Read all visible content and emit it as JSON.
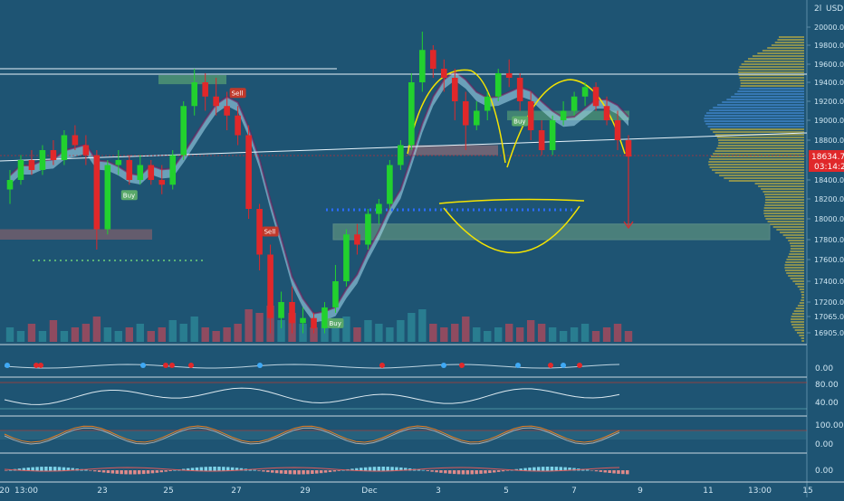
{
  "header": {
    "currency_label": "USD",
    "currency_prefix": "2l"
  },
  "price_scale": {
    "ticks": [
      "20000.00",
      "19800.00",
      "19600.00",
      "19400.00",
      "19200.00",
      "19000.00",
      "18800.00",
      "18400.00",
      "18200.00",
      "18000.00",
      "17800.00",
      "17600.00",
      "17400.00",
      "17200.00",
      "17065.00",
      "16905.00"
    ],
    "current_price": "18634.72",
    "countdown": "03:14:22"
  },
  "time_axis": {
    "labels": [
      "20",
      "13:00",
      "23",
      "25",
      "27",
      "29",
      "Dec",
      "3",
      "5",
      "7",
      "9",
      "11",
      "13:00",
      "15"
    ]
  },
  "indicator_scales": {
    "pane1": [
      "0.00"
    ],
    "pane2": [
      "80.00",
      "40.00"
    ],
    "pane3": [
      "100.00",
      "0.00"
    ],
    "pane4": [
      "0.00"
    ]
  },
  "signals": {
    "buy_label": "Buy",
    "sell_label": "Sell"
  },
  "colors": {
    "background": "#1e5473",
    "bull": "#22d12e",
    "bear": "#e0282a",
    "neutral": "#d9d9d9",
    "ribbon_up": "#a9dff2",
    "ribbon_down": "#7a1a5a",
    "pattern": "#f5e400",
    "price_tag": "#e0282a"
  },
  "chart_data": {
    "type": "candlestick",
    "symbol_currency": "USD",
    "y_range": [
      16850,
      20100
    ],
    "y_ticks": [
      20000,
      19800,
      19600,
      19400,
      19200,
      19000,
      18800,
      18400,
      18200,
      18000,
      17800,
      17600,
      17400,
      17200,
      17065,
      16905
    ],
    "last_price": 18634.72,
    "candles": [
      {
        "o": 18300,
        "h": 18500,
        "l": 18150,
        "c": 18400
      },
      {
        "o": 18400,
        "h": 18650,
        "l": 18350,
        "c": 18600
      },
      {
        "o": 18600,
        "h": 18700,
        "l": 18450,
        "c": 18500
      },
      {
        "o": 18500,
        "h": 18750,
        "l": 18450,
        "c": 18700
      },
      {
        "o": 18700,
        "h": 18800,
        "l": 18550,
        "c": 18600
      },
      {
        "o": 18600,
        "h": 18900,
        "l": 18550,
        "c": 18850
      },
      {
        "o": 18850,
        "h": 18950,
        "l": 18700,
        "c": 18750
      },
      {
        "o": 18750,
        "h": 18850,
        "l": 18550,
        "c": 18650
      },
      {
        "o": 18650,
        "h": 18700,
        "l": 17700,
        "c": 17900
      },
      {
        "o": 17900,
        "h": 18600,
        "l": 17850,
        "c": 18550
      },
      {
        "o": 18550,
        "h": 18700,
        "l": 18450,
        "c": 18600
      },
      {
        "o": 18600,
        "h": 18650,
        "l": 18350,
        "c": 18400
      },
      {
        "o": 18400,
        "h": 18650,
        "l": 18350,
        "c": 18550
      },
      {
        "o": 18550,
        "h": 18600,
        "l": 18350,
        "c": 18400
      },
      {
        "o": 18400,
        "h": 18550,
        "l": 18250,
        "c": 18350
      },
      {
        "o": 18350,
        "h": 18700,
        "l": 18300,
        "c": 18650
      },
      {
        "o": 18650,
        "h": 19200,
        "l": 18600,
        "c": 19150
      },
      {
        "o": 19150,
        "h": 19550,
        "l": 19050,
        "c": 19400
      },
      {
        "o": 19400,
        "h": 19500,
        "l": 19100,
        "c": 19250
      },
      {
        "o": 19250,
        "h": 19450,
        "l": 19050,
        "c": 19150
      },
      {
        "o": 19150,
        "h": 19300,
        "l": 18900,
        "c": 19050
      },
      {
        "o": 19050,
        "h": 19150,
        "l": 18750,
        "c": 18850
      },
      {
        "o": 18850,
        "h": 18950,
        "l": 18000,
        "c": 18100
      },
      {
        "o": 18100,
        "h": 18150,
        "l": 17500,
        "c": 17650
      },
      {
        "o": 17650,
        "h": 17750,
        "l": 16900,
        "c": 17050
      },
      {
        "o": 17050,
        "h": 17300,
        "l": 16950,
        "c": 17200
      },
      {
        "o": 17200,
        "h": 17350,
        "l": 16900,
        "c": 17000
      },
      {
        "o": 17000,
        "h": 17150,
        "l": 16900,
        "c": 17050
      },
      {
        "o": 17050,
        "h": 17100,
        "l": 16900,
        "c": 16950
      },
      {
        "o": 16950,
        "h": 17200,
        "l": 16900,
        "c": 17150
      },
      {
        "o": 17150,
        "h": 17550,
        "l": 17100,
        "c": 17400
      },
      {
        "o": 17400,
        "h": 17900,
        "l": 17350,
        "c": 17850
      },
      {
        "o": 17850,
        "h": 17950,
        "l": 17650,
        "c": 17750
      },
      {
        "o": 17750,
        "h": 18100,
        "l": 17700,
        "c": 18050
      },
      {
        "o": 18050,
        "h": 18200,
        "l": 17950,
        "c": 18150
      },
      {
        "o": 18150,
        "h": 18600,
        "l": 18100,
        "c": 18550
      },
      {
        "o": 18550,
        "h": 18800,
        "l": 18500,
        "c": 18750
      },
      {
        "o": 18750,
        "h": 19500,
        "l": 18700,
        "c": 19400
      },
      {
        "o": 19400,
        "h": 19950,
        "l": 19300,
        "c": 19750
      },
      {
        "o": 19750,
        "h": 19800,
        "l": 19450,
        "c": 19550
      },
      {
        "o": 19550,
        "h": 19650,
        "l": 19300,
        "c": 19450
      },
      {
        "o": 19450,
        "h": 19550,
        "l": 19000,
        "c": 19200
      },
      {
        "o": 19200,
        "h": 19300,
        "l": 18700,
        "c": 18950
      },
      {
        "o": 18950,
        "h": 19200,
        "l": 18900,
        "c": 19100
      },
      {
        "o": 19100,
        "h": 19300,
        "l": 19000,
        "c": 19250
      },
      {
        "o": 19250,
        "h": 19550,
        "l": 19200,
        "c": 19500
      },
      {
        "o": 19500,
        "h": 19650,
        "l": 19350,
        "c": 19450
      },
      {
        "o": 19450,
        "h": 19500,
        "l": 19100,
        "c": 19200
      },
      {
        "o": 19200,
        "h": 19300,
        "l": 18800,
        "c": 18900
      },
      {
        "o": 18900,
        "h": 19000,
        "l": 18650,
        "c": 18700
      },
      {
        "o": 18700,
        "h": 19050,
        "l": 18650,
        "c": 19000
      },
      {
        "o": 19000,
        "h": 19200,
        "l": 18950,
        "c": 19100
      },
      {
        "o": 19100,
        "h": 19300,
        "l": 19050,
        "c": 19250
      },
      {
        "o": 19250,
        "h": 19400,
        "l": 19150,
        "c": 19350
      },
      {
        "o": 19350,
        "h": 19400,
        "l": 19100,
        "c": 19150
      },
      {
        "o": 19150,
        "h": 19250,
        "l": 18950,
        "c": 19000
      },
      {
        "o": 19000,
        "h": 19100,
        "l": 18700,
        "c": 18800
      },
      {
        "o": 18800,
        "h": 18850,
        "l": 18550,
        "c": 18635
      }
    ],
    "volume": [
      0.4,
      0.3,
      0.5,
      0.3,
      0.6,
      0.3,
      0.4,
      0.5,
      0.7,
      0.4,
      0.3,
      0.4,
      0.5,
      0.3,
      0.4,
      0.6,
      0.5,
      0.7,
      0.4,
      0.3,
      0.4,
      0.5,
      0.9,
      0.8,
      1.0,
      0.6,
      0.8,
      0.5,
      0.4,
      0.6,
      0.5,
      0.7,
      0.4,
      0.6,
      0.5,
      0.4,
      0.6,
      0.8,
      0.9,
      0.5,
      0.4,
      0.5,
      0.7,
      0.4,
      0.3,
      0.4,
      0.5,
      0.4,
      0.6,
      0.5,
      0.4,
      0.3,
      0.4,
      0.5,
      0.3,
      0.4,
      0.5,
      0.3
    ],
    "trendlines": [
      {
        "from": [
          0,
          18590
        ],
        "to": [
          57,
          18890
        ]
      },
      {
        "from": [
          0,
          19550
        ],
        "to": [
          30,
          19550
        ]
      },
      {
        "from": [
          0,
          19480
        ],
        "to": [
          60,
          19480
        ]
      }
    ],
    "zones": [
      {
        "label": "support",
        "y": [
          17900,
          17800
        ]
      },
      {
        "label": "resistance",
        "y": [
          19480,
          19380
        ]
      }
    ],
    "signals": [
      {
        "type": "Buy",
        "index": 11
      },
      {
        "type": "Buy",
        "index": 30
      },
      {
        "type": "Buy",
        "index": 47
      },
      {
        "type": "Sell",
        "index": 21
      },
      {
        "type": "Sell",
        "index": 24
      }
    ],
    "pattern": "cup and handle (yellow arcs)",
    "target_price": 17950,
    "time_labels": [
      "20",
      "13:00",
      "23",
      "25",
      "27",
      "29",
      "Dec",
      "3",
      "5",
      "7",
      "9",
      "11",
      "13:00",
      "15"
    ],
    "indicator_panes": [
      {
        "ticks": [
          0.0
        ]
      },
      {
        "ticks": [
          80.0,
          40.0
        ]
      },
      {
        "ticks": [
          100.0,
          0.0
        ]
      },
      {
        "ticks": [
          0.0
        ]
      }
    ]
  }
}
